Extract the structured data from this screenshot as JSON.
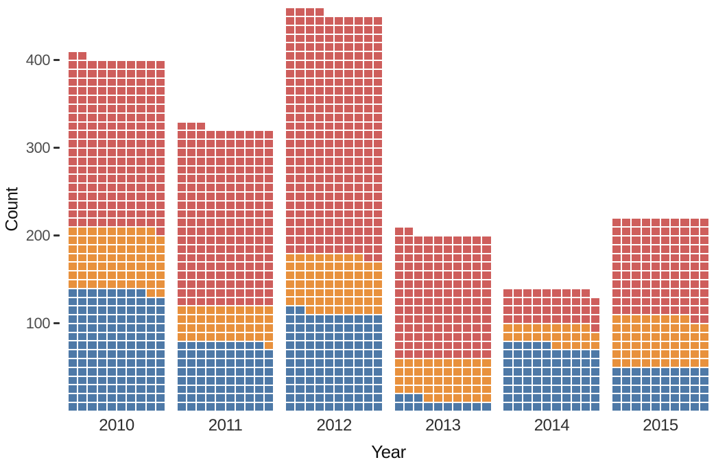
{
  "figure": {
    "background": "#ffffff"
  },
  "chart_data": {
    "type": "bar",
    "subtype": "waffle-stacked-bars",
    "title": "",
    "xlabel": "Year",
    "ylabel": "Count",
    "unit_per_square": 1,
    "columns_per_bar": 10,
    "categories": [
      "2010",
      "2011",
      "2012",
      "2013",
      "2014",
      "2015"
    ],
    "series": [
      {
        "name": "blue-segment",
        "color": "#4E79A7",
        "values": [
          138,
          79,
          112,
          13,
          75,
          50
        ]
      },
      {
        "name": "orange-segment",
        "color": "#E8913D",
        "values": [
          71,
          41,
          66,
          47,
          24,
          58
        ]
      },
      {
        "name": "red-segment",
        "color": "#CE5E5C",
        "values": [
          193,
          203,
          276,
          142,
          40,
          112
        ]
      }
    ],
    "totals": [
      402,
      323,
      454,
      202,
      139,
      220
    ],
    "yticks": [
      "100",
      "200",
      "300",
      "400"
    ],
    "ytick_values": [
      100,
      200,
      300,
      400
    ],
    "ylim": [
      0,
      460
    ],
    "grid": "off",
    "legend": "none",
    "square_gap_color": "#ffffff",
    "axis_text_color": "#4d4d4d",
    "axis_title_color": "#111111",
    "tick_mark_color": "#333333"
  }
}
